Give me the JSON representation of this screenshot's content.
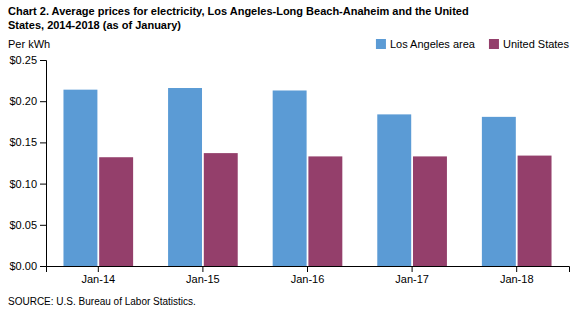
{
  "chart_data": {
    "type": "bar",
    "title": "Chart 2. Average prices for electricity, Los Angeles-Long Beach-Anaheim and the United",
    "subtitle": "States, 2014-2018  (as of January)",
    "y_label": "Per kWh",
    "annotations": [
      "SOURCE: U.S. Bureau of Labor Statistics."
    ],
    "categories": [
      "Jan-14",
      "Jan-15",
      "Jan-16",
      "Jan-17",
      "Jan-18"
    ],
    "series": [
      {
        "name": "Los Angeles area",
        "color": "#5B9BD5",
        "values": [
          0.214,
          0.216,
          0.213,
          0.184,
          0.181
        ]
      },
      {
        "name": "United States",
        "color": "#943F6B",
        "values": [
          0.132,
          0.137,
          0.133,
          0.133,
          0.134
        ]
      }
    ],
    "ylim": [
      0,
      0.25
    ],
    "yticks": [
      {
        "value": 0.0,
        "label": "$0.00"
      },
      {
        "value": 0.05,
        "label": "$0.05"
      },
      {
        "value": 0.1,
        "label": "$0.10"
      },
      {
        "value": 0.15,
        "label": "$0.15"
      },
      {
        "value": 0.2,
        "label": "$0.20"
      },
      {
        "value": 0.25,
        "label": "$0.25"
      }
    ],
    "grid": false,
    "legend": "upper right"
  }
}
